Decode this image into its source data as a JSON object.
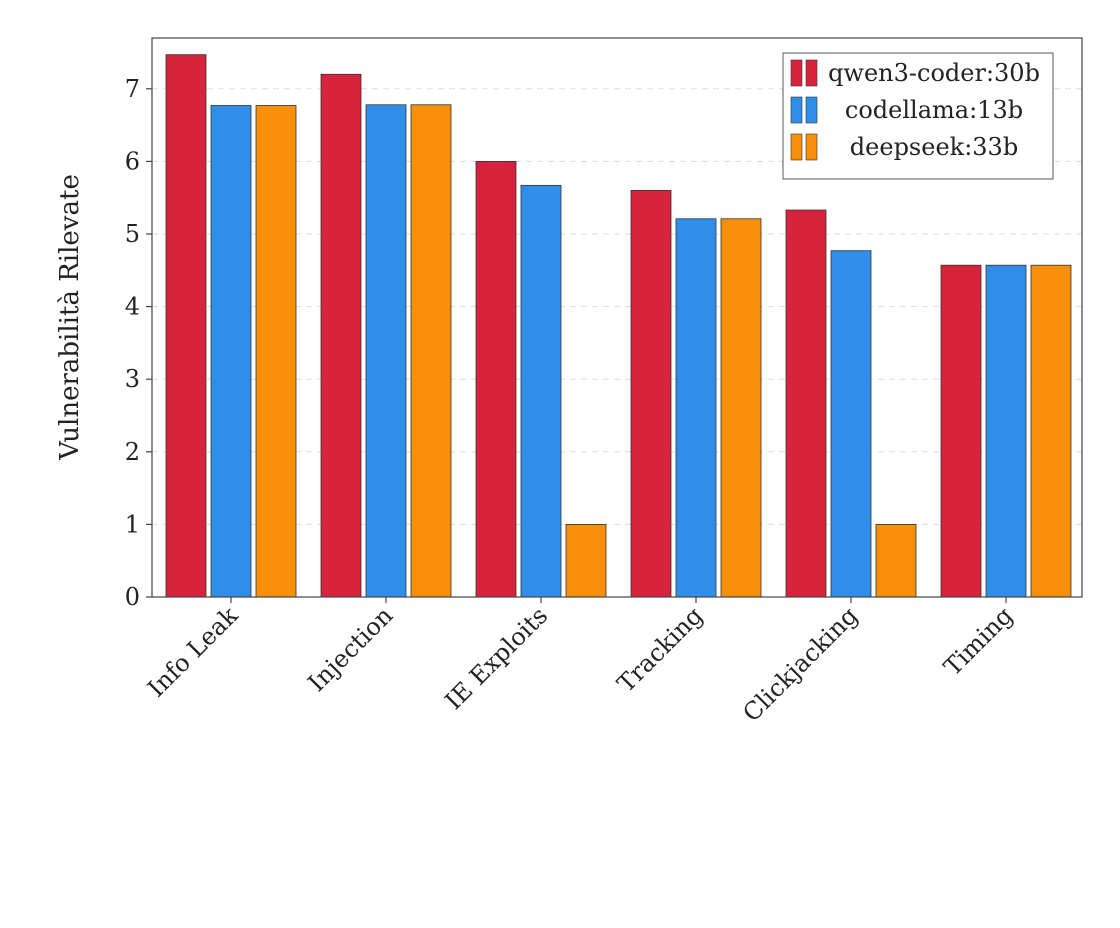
{
  "chart_data": {
    "type": "bar",
    "title": "",
    "xlabel": "",
    "ylabel": "Vulnerabilità Rilevate",
    "ylim": [
      0,
      7.7
    ],
    "yticks": [
      0,
      1,
      2,
      3,
      4,
      5,
      6,
      7
    ],
    "grid": "horizontal dashed",
    "legend_position": "top-right",
    "categories": [
      "Info Leak",
      "Injection",
      "IE Exploits",
      "Tracking",
      "Clickjacking",
      "Timing"
    ],
    "series": [
      {
        "name": "qwen3-coder:30b",
        "color": "#d7233c",
        "values": [
          7.47,
          7.2,
          6.0,
          5.6,
          5.33,
          4.57
        ]
      },
      {
        "name": "codellama:13b",
        "color": "#2f8fe8",
        "values": [
          6.77,
          6.78,
          5.67,
          5.21,
          4.77,
          4.57
        ]
      },
      {
        "name": "deepseek:33b",
        "color": "#f78f0a",
        "values": [
          6.77,
          6.78,
          1.0,
          5.21,
          1.0,
          4.57
        ]
      }
    ]
  }
}
